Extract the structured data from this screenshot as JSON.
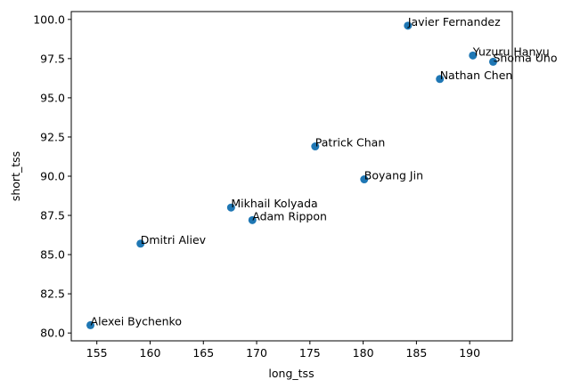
{
  "chart_data": {
    "type": "scatter",
    "title": "",
    "xlabel": "long_tss",
    "ylabel": "short_tss",
    "xlim": [
      152.6,
      194.0
    ],
    "ylim": [
      79.5,
      100.5
    ],
    "x_ticks": [
      155,
      160,
      165,
      170,
      175,
      180,
      185,
      190
    ],
    "y_ticks": [
      80.0,
      82.5,
      85.0,
      87.5,
      90.0,
      92.5,
      95.0,
      97.5,
      100.0
    ],
    "x_tick_labels": [
      "155",
      "160",
      "165",
      "170",
      "175",
      "180",
      "185",
      "190"
    ],
    "y_tick_labels": [
      "80.0",
      "82.5",
      "85.0",
      "87.5",
      "90.0",
      "92.5",
      "95.0",
      "97.5",
      "100.0"
    ],
    "grid": false,
    "legend": "none",
    "marker_color": "#1f77b4",
    "points": [
      {
        "label": "Javier Fernandez",
        "x": 184.2,
        "y": 99.6
      },
      {
        "label": "Yuzuru Hanyu",
        "x": 190.3,
        "y": 97.7
      },
      {
        "label": "Shoma Uno",
        "x": 192.2,
        "y": 97.3
      },
      {
        "label": "Nathan Chen",
        "x": 187.2,
        "y": 96.2
      },
      {
        "label": "Patrick Chan",
        "x": 175.5,
        "y": 91.9
      },
      {
        "label": "Boyang Jin",
        "x": 180.1,
        "y": 89.8
      },
      {
        "label": "Mikhail Kolyada",
        "x": 167.6,
        "y": 88.0
      },
      {
        "label": "Adam Rippon",
        "x": 169.6,
        "y": 87.2
      },
      {
        "label": "Dmitri Aliev",
        "x": 159.1,
        "y": 85.7
      },
      {
        "label": "Alexei Bychenko",
        "x": 154.4,
        "y": 80.5
      }
    ]
  }
}
